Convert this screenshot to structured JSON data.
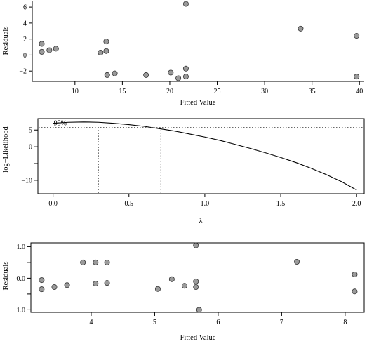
{
  "chart_data": [
    {
      "type": "scatter",
      "title": "",
      "xlabel": "Fitted Value",
      "ylabel": "Residuals",
      "xlim": [
        5.5,
        40.5
      ],
      "ylim": [
        -3.3,
        6.8
      ],
      "xticks": [
        "10",
        "15",
        "20",
        "25",
        "30",
        "35",
        "40"
      ],
      "yticks": [
        "−2",
        "0",
        "2",
        "4",
        "6"
      ],
      "xtick_values": [
        10,
        15,
        20,
        25,
        30,
        35,
        40
      ],
      "ytick_values": [
        -2,
        0,
        2,
        4,
        6
      ],
      "grid": false,
      "points": [
        {
          "x": 6.5,
          "y": 1.4
        },
        {
          "x": 6.5,
          "y": 0.4
        },
        {
          "x": 7.3,
          "y": 0.6
        },
        {
          "x": 8.0,
          "y": 0.8
        },
        {
          "x": 12.7,
          "y": 0.3
        },
        {
          "x": 13.3,
          "y": 1.7
        },
        {
          "x": 13.3,
          "y": 0.5
        },
        {
          "x": 13.4,
          "y": -2.5
        },
        {
          "x": 14.2,
          "y": -2.3
        },
        {
          "x": 17.5,
          "y": -2.5
        },
        {
          "x": 20.1,
          "y": -2.2
        },
        {
          "x": 20.9,
          "y": -2.9
        },
        {
          "x": 21.7,
          "y": 6.4
        },
        {
          "x": 21.7,
          "y": -1.7
        },
        {
          "x": 21.7,
          "y": -2.7
        },
        {
          "x": 33.8,
          "y": 3.3
        },
        {
          "x": 39.7,
          "y": 2.4
        },
        {
          "x": 39.7,
          "y": -2.7
        }
      ]
    },
    {
      "type": "line",
      "title": "",
      "xlabel": "λ",
      "ylabel": "log−Likelihood",
      "xlim": [
        -0.1,
        2.05
      ],
      "ylim": [
        -14,
        8.4
      ],
      "xticks": [
        "0.0",
        "0.5",
        "1.0",
        "1.5",
        "2.0"
      ],
      "yticks": [
        "−10",
        "0",
        "5"
      ],
      "xtick_values": [
        0,
        0.5,
        1.0,
        1.5,
        2.0
      ],
      "ytick_values": [
        -10,
        0,
        5
      ],
      "extra_tick_values": [
        -5
      ],
      "grid": false,
      "annotation": "95%",
      "ci_level_y": 5.8,
      "ci_lambda": [
        0.3,
        0.71
      ],
      "series": [
        {
          "x": [
            0.0,
            0.1,
            0.2,
            0.3,
            0.4,
            0.5,
            0.6,
            0.7,
            0.8,
            0.9,
            1.0,
            1.1,
            1.2,
            1.3,
            1.4,
            1.5,
            1.6,
            1.7,
            1.8,
            1.9,
            2.0
          ],
          "values": [
            7.0,
            7.3,
            7.4,
            7.3,
            7.0,
            6.6,
            6.1,
            5.4,
            4.7,
            3.8,
            2.9,
            1.9,
            0.7,
            -0.5,
            -1.8,
            -3.2,
            -4.7,
            -6.4,
            -8.3,
            -10.4,
            -12.9
          ]
        }
      ]
    },
    {
      "type": "scatter",
      "title": "",
      "xlabel": "Fitted Value",
      "ylabel": "Residuals",
      "xlim": [
        3.05,
        8.3
      ],
      "ylim": [
        -1.08,
        1.12
      ],
      "xticks": [
        "4",
        "5",
        "6",
        "7",
        "8"
      ],
      "yticks": [
        "−1.0",
        "0.0",
        "1.0"
      ],
      "xtick_values": [
        4,
        5,
        6,
        7,
        8
      ],
      "ytick_values": [
        -1.0,
        0.0,
        1.0
      ],
      "extra_tick_values": [
        -0.5,
        0.5
      ],
      "grid": false,
      "points": [
        {
          "x": 3.22,
          "y": -0.06
        },
        {
          "x": 3.22,
          "y": -0.35
        },
        {
          "x": 3.42,
          "y": -0.28
        },
        {
          "x": 3.62,
          "y": -0.22
        },
        {
          "x": 3.87,
          "y": 0.5
        },
        {
          "x": 4.07,
          "y": 0.5
        },
        {
          "x": 4.07,
          "y": -0.17
        },
        {
          "x": 4.25,
          "y": 0.5
        },
        {
          "x": 4.25,
          "y": -0.15
        },
        {
          "x": 5.05,
          "y": -0.34
        },
        {
          "x": 5.27,
          "y": -0.03
        },
        {
          "x": 5.47,
          "y": -0.24
        },
        {
          "x": 5.65,
          "y": 1.04
        },
        {
          "x": 5.65,
          "y": -0.1
        },
        {
          "x": 5.65,
          "y": -0.28
        },
        {
          "x": 5.7,
          "y": -1.0
        },
        {
          "x": 7.24,
          "y": 0.52
        },
        {
          "x": 8.15,
          "y": 0.12
        },
        {
          "x": 8.15,
          "y": -0.42
        }
      ]
    }
  ]
}
